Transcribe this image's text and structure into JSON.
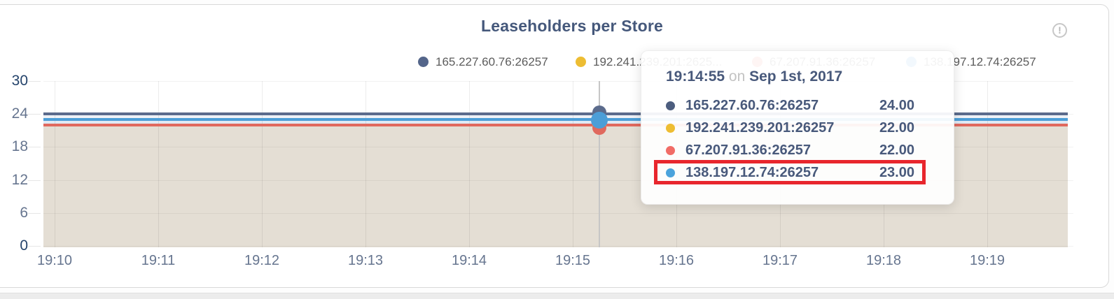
{
  "card": {
    "title": "Leaseholders per Store",
    "info_glyph": "!"
  },
  "legend": {
    "items": [
      {
        "label": "165.227.60.76:26257",
        "color": "#54658a"
      },
      {
        "label": "192.241.239.201:2625...",
        "color": "#edbd33"
      },
      {
        "label": "67.207.91.36:26257",
        "color": "#ee6d65"
      },
      {
        "label": "138.197.12.74:26257",
        "color": "#4da0d8"
      }
    ]
  },
  "tooltip": {
    "time": "19:14:55",
    "conjunction": "on",
    "date": "Sep 1st, 2017",
    "text_color": "#48597b",
    "highlight_color": "#e8262d",
    "rows": [
      {
        "label": "165.227.60.76:26257",
        "value": "24.00",
        "color": "#4c5d7e",
        "highlighted": false
      },
      {
        "label": "192.241.239.201:26257",
        "value": "22.00",
        "color": "#eebd32",
        "highlighted": false
      },
      {
        "label": "67.207.91.36:26257",
        "value": "22.00",
        "color": "#f16c66",
        "highlighted": false
      },
      {
        "label": "138.197.12.74:26257",
        "value": "23.00",
        "color": "#4ba3dc",
        "highlighted": true
      }
    ]
  },
  "chart_data": {
    "type": "line",
    "title": "Leaseholders per Store",
    "x_ticks": [
      "19:10",
      "19:11",
      "19:12",
      "19:13",
      "19:14",
      "19:15",
      "19:16",
      "19:17",
      "19:18",
      "19:19"
    ],
    "y_ticks": [
      30,
      24,
      18,
      12,
      6,
      0
    ],
    "ylim": [
      0,
      30
    ],
    "grid": true,
    "legend_position": "top-center",
    "series": [
      {
        "name": "165.227.60.76:26257",
        "color": "#5b6b8c",
        "constant_value": 24
      },
      {
        "name": "192.241.239.201:26257",
        "color": "#eebe35",
        "constant_value": 22
      },
      {
        "name": "67.207.91.36:26257",
        "color": "#e0695e",
        "constant_value": 22
      },
      {
        "name": "138.197.12.74:26257",
        "color": "#4c9ed7",
        "constant_value": 23
      }
    ],
    "hover_point": {
      "time": "19:14:55",
      "date": "Sep 1st, 2017",
      "values": [
        24,
        22,
        22,
        23
      ]
    },
    "fill_bands": [
      {
        "from": 23,
        "to": 24,
        "color": "#eef1f6"
      },
      {
        "from": 22,
        "to": 23,
        "color": "#e0e9f4"
      },
      {
        "from": 0,
        "to": 22,
        "color": "#e4ded4"
      }
    ],
    "axis_label_color": "#66758f",
    "axis_endpoint_label_color": "#24436b"
  }
}
